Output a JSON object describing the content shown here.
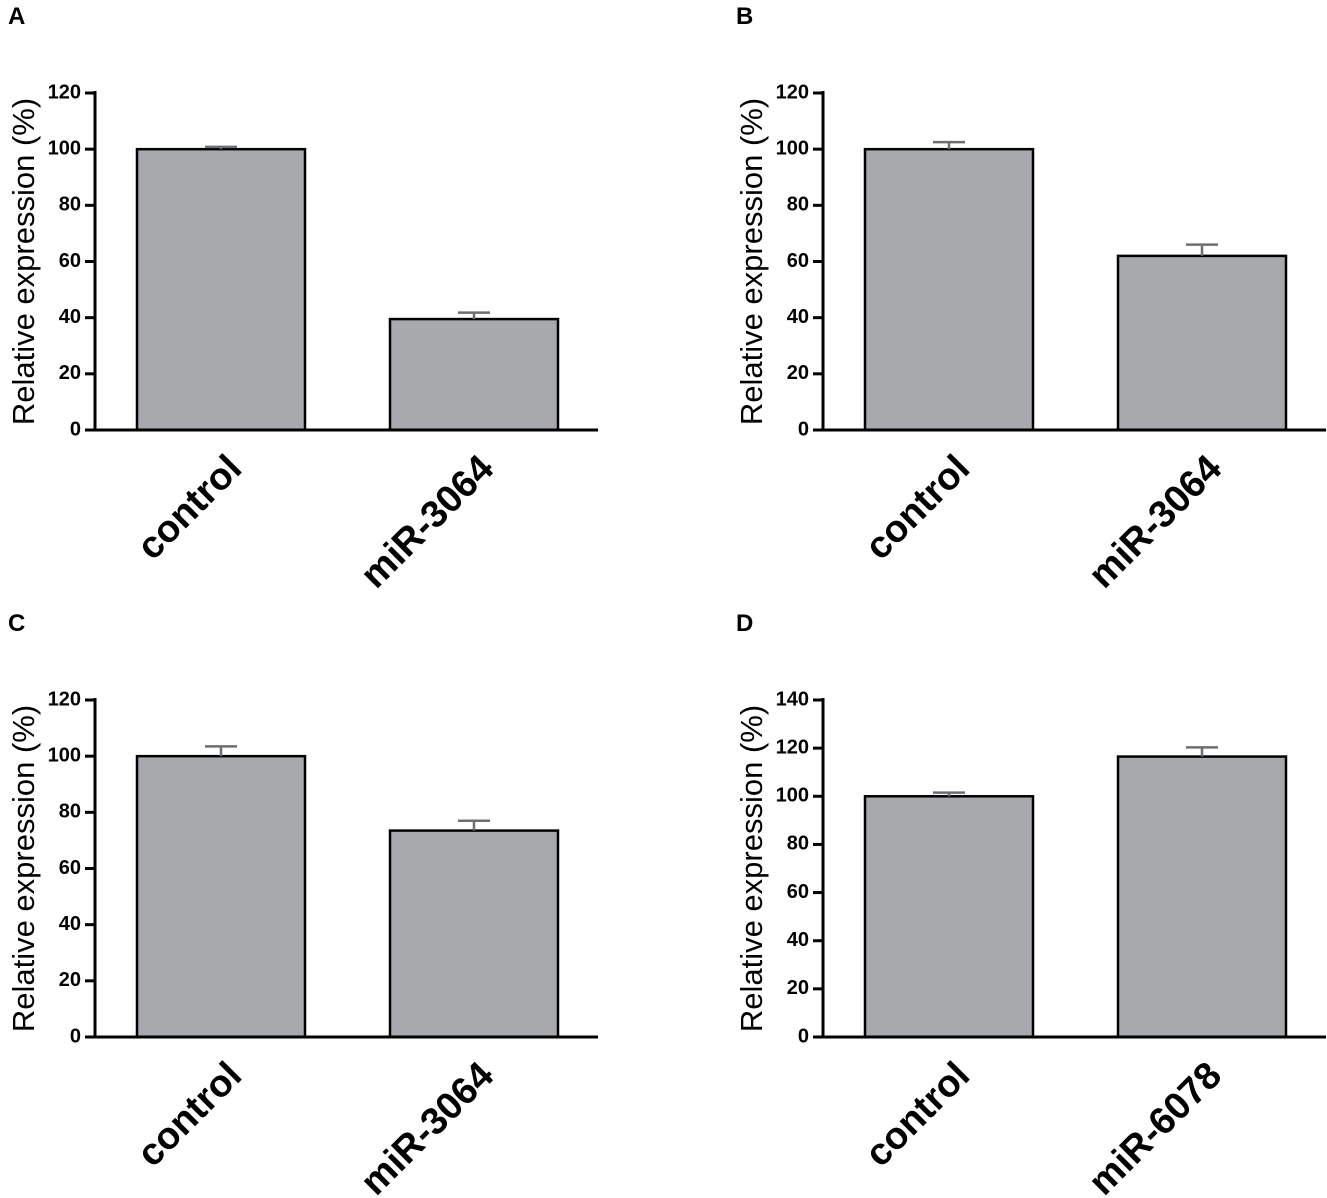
{
  "chart_data": [
    {
      "type": "bar",
      "panel_label": "A",
      "ylabel": "Relative expression (%)",
      "ylim": [
        0,
        120
      ],
      "yticks": [
        0,
        20,
        40,
        60,
        80,
        100,
        120
      ],
      "categories": [
        "control",
        "miR-3064"
      ],
      "values": [
        100,
        39.5
      ],
      "errors": [
        0.8,
        2.3
      ],
      "bar_color": "#a7a9ac"
    },
    {
      "type": "bar",
      "panel_label": "B",
      "ylabel": "Relative expression (%)",
      "ylim": [
        0,
        120
      ],
      "yticks": [
        0,
        20,
        40,
        60,
        80,
        100,
        120
      ],
      "categories": [
        "control",
        "miR-3064"
      ],
      "values": [
        100,
        62
      ],
      "errors": [
        2.5,
        4
      ],
      "bar_color": "#a7a9ac"
    },
    {
      "type": "bar",
      "panel_label": "C",
      "ylabel": "Relative expression (%)",
      "ylim": [
        0,
        120
      ],
      "yticks": [
        0,
        20,
        40,
        60,
        80,
        100,
        120
      ],
      "categories": [
        "control",
        "miR-3064"
      ],
      "values": [
        100,
        73.5
      ],
      "errors": [
        3.5,
        3.5
      ],
      "bar_color": "#a7a9ac"
    },
    {
      "type": "bar",
      "panel_label": "D",
      "ylabel": "Relative expression (%)",
      "ylim": [
        0,
        140
      ],
      "yticks": [
        0,
        20,
        40,
        60,
        80,
        100,
        120,
        140
      ],
      "categories": [
        "control",
        "miR-6078"
      ],
      "values": [
        100,
        116.5
      ],
      "errors": [
        1.5,
        3.8
      ],
      "bar_color": "#a7a9ac"
    }
  ]
}
